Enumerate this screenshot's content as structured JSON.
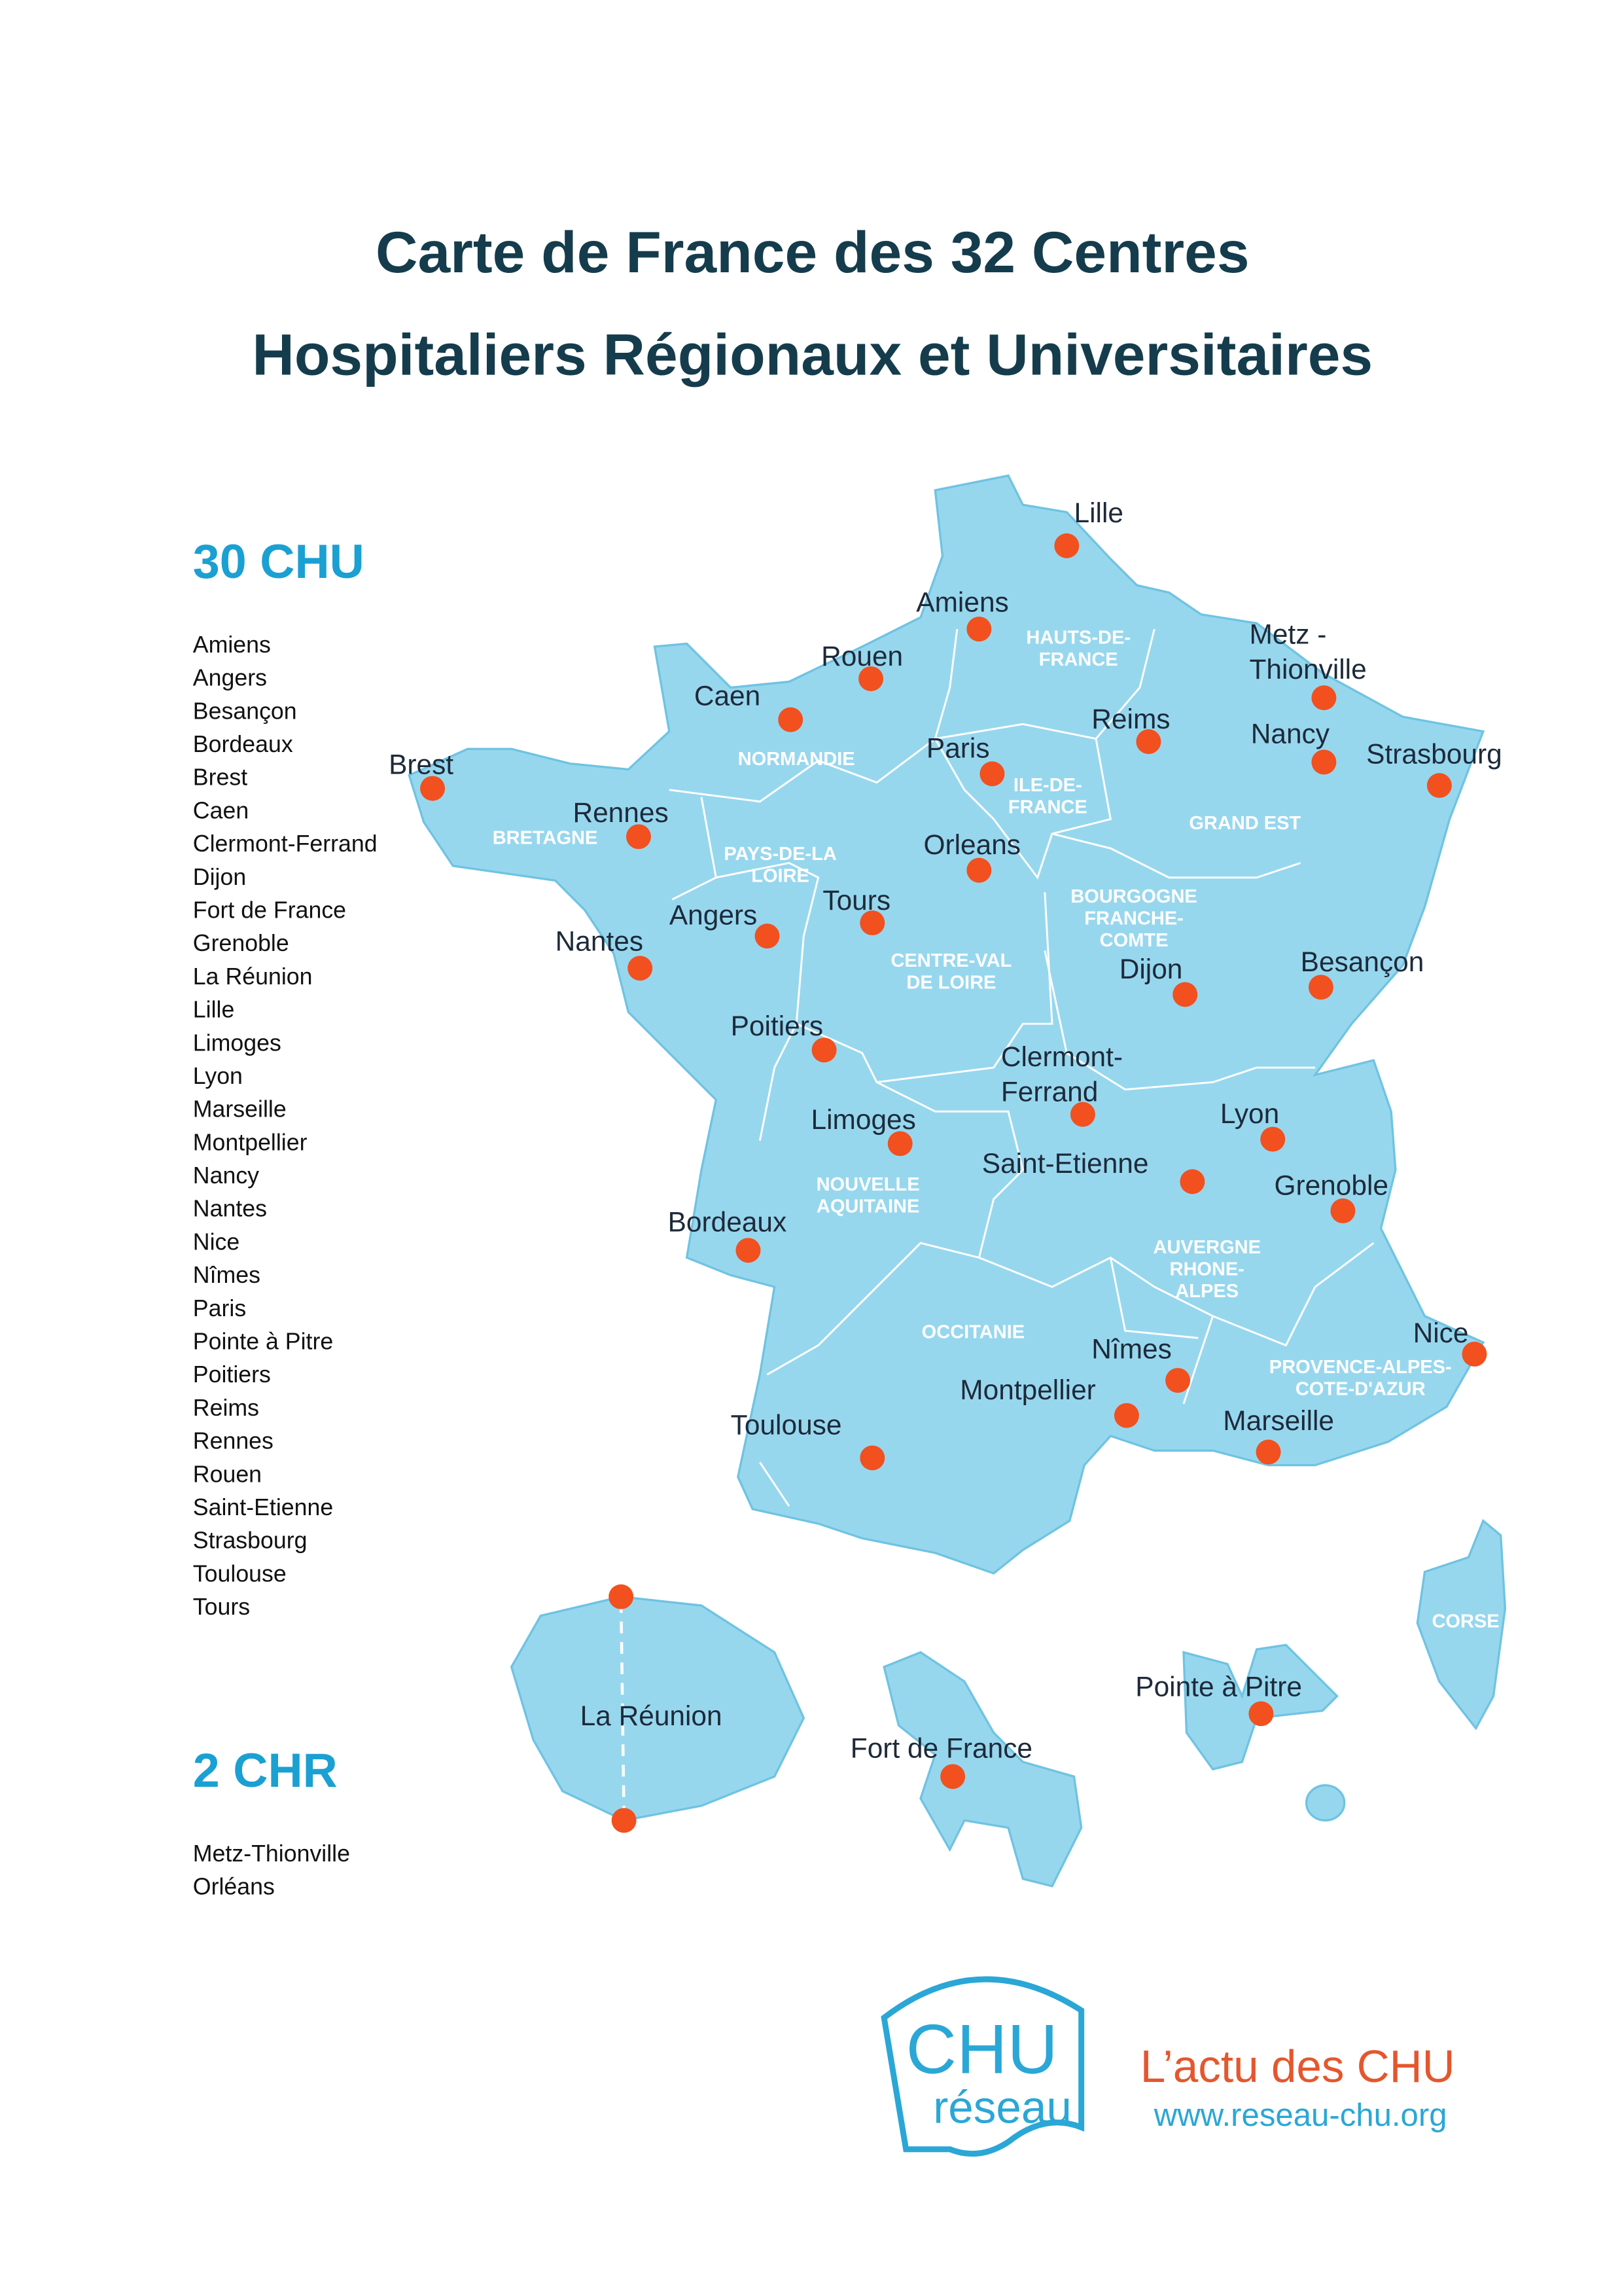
{
  "header": {
    "title_lines": [
      "Carte de France des 32 Centres",
      "Hospitaliers Régionaux et Universitaires"
    ]
  },
  "chu": {
    "heading": "30 CHU",
    "items": [
      "Amiens",
      "Angers",
      "Besançon",
      "Bordeaux",
      "Brest",
      "Caen",
      "Clermont-Ferrand",
      "Dijon",
      "Fort de France",
      "Grenoble",
      "La Réunion",
      "Lille",
      "Limoges",
      "Lyon",
      "Marseille",
      "Montpellier",
      "Nancy",
      "Nantes",
      "Nice",
      "Nîmes",
      "Paris",
      "Pointe à Pitre",
      "Poitiers",
      "Reims",
      "Rennes",
      "Rouen",
      "Saint-Etienne",
      "Strasbourg",
      "Toulouse",
      "Tours"
    ]
  },
  "chr": {
    "heading": "2 CHR",
    "items": [
      "Metz-Thionville",
      "Orléans"
    ]
  },
  "map": {
    "cities": [
      [
        "Lille"
      ],
      [
        "Amiens"
      ],
      [
        "Rouen"
      ],
      [
        "Caen"
      ],
      [
        "Metz -",
        "Thionville"
      ],
      [
        "Reims"
      ],
      [
        "Nancy"
      ],
      [
        "Strasbourg"
      ],
      [
        "Brest"
      ],
      [
        "Rennes"
      ],
      [
        "Paris"
      ],
      [
        "Orleans"
      ],
      [
        "Tours"
      ],
      [
        "Angers"
      ],
      [
        "Nantes"
      ],
      [
        "Dijon"
      ],
      [
        "Besançon"
      ],
      [
        "Poitiers"
      ],
      [
        "Clermont-",
        "Ferrand"
      ],
      [
        "Limoges"
      ],
      [
        "Lyon"
      ],
      [
        "Saint-Etienne"
      ],
      [
        "Grenoble"
      ],
      [
        "Bordeaux"
      ],
      [
        "Nîmes"
      ],
      [
        "Nice"
      ],
      [
        "Montpellier"
      ],
      [
        "Marseille"
      ],
      [
        "Toulouse"
      ],
      [
        "La Réunion"
      ],
      [
        "Fort de France"
      ],
      [
        "Pointe à Pitre"
      ]
    ],
    "regions": [
      [
        "HAUTS-DE-",
        "FRANCE"
      ],
      [
        "NORMANDIE"
      ],
      [
        "BRETAGNE"
      ],
      [
        "PAYS-DE-LA",
        "LOIRE"
      ],
      [
        "ILE-DE-",
        "FRANCE"
      ],
      [
        "GRAND EST"
      ],
      [
        "BOURGOGNE",
        "FRANCHE-",
        "COMTE"
      ],
      [
        "CENTRE-VAL",
        "DE LOIRE"
      ],
      [
        "NOUVELLE",
        "AQUITAINE"
      ],
      [
        "AUVERGNE",
        "RHONE-",
        "ALPES"
      ],
      [
        "OCCITANIE"
      ],
      [
        "PROVENCE-ALPES-",
        "COTE-D'AZUR"
      ],
      [
        "CORSE"
      ]
    ]
  },
  "logo": {
    "mark_top": "CHU",
    "mark_bottom": "réseau",
    "tagline": "L’actu des CHU",
    "url": "www.reseau-chu.org"
  }
}
